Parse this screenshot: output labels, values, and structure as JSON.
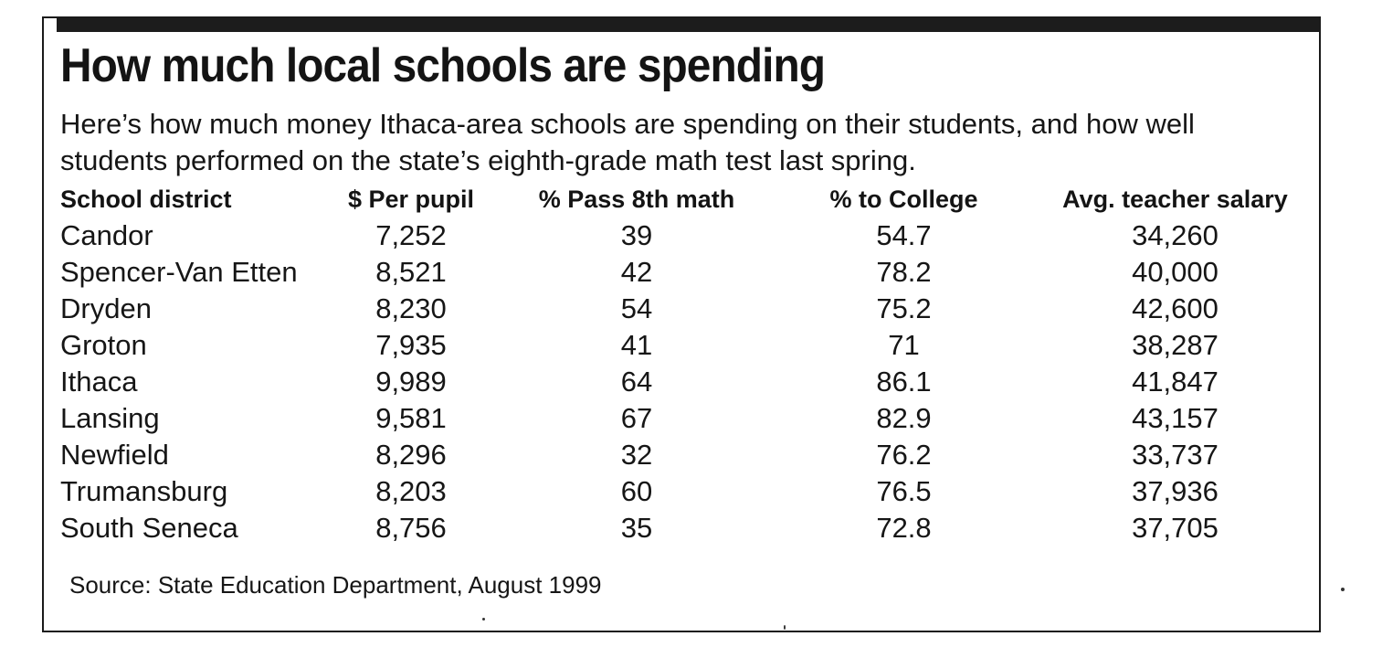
{
  "headline": "How much local schools are spending",
  "intro": "Here’s how much money Ithaca-area schools are spending on their students, and how well students performed on the state’s eighth-grade math test last spring.",
  "table": {
    "headers": [
      "School district",
      "$ Per pupil",
      "% Pass 8th math",
      "% to College",
      "Avg. teacher salary"
    ],
    "rows": [
      [
        "Candor",
        "7,252",
        "39",
        "54.7",
        "34,260"
      ],
      [
        "Spencer-Van Etten",
        "8,521",
        "42",
        "78.2",
        "40,000"
      ],
      [
        "Dryden",
        "8,230",
        "54",
        "75.2",
        "42,600"
      ],
      [
        "Groton",
        "7,935",
        "41",
        "71",
        "38,287"
      ],
      [
        "Ithaca",
        "9,989",
        "64",
        "86.1",
        "41,847"
      ],
      [
        "Lansing",
        "9,581",
        "67",
        "82.9",
        "43,157"
      ],
      [
        "Newfield",
        "8,296",
        "32",
        "76.2",
        "33,737"
      ],
      [
        "Trumansburg",
        "8,203",
        "60",
        "76.5",
        "37,936"
      ],
      [
        "South Seneca",
        "8,756",
        "35",
        "72.8",
        "37,705"
      ]
    ]
  },
  "source": "Source: State Education Department, August 1999"
}
